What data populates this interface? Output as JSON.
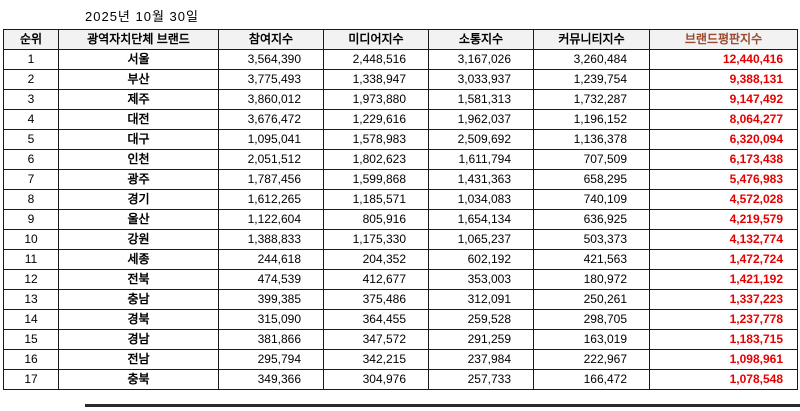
{
  "title": "2025년 10월 30일",
  "colors": {
    "reputation_value": "#e60000",
    "reputation_header": "#9a4a2e",
    "header_bg": "#f2f2f2",
    "border": "#1a1a1a"
  },
  "chart_data": {
    "type": "table",
    "title": "2025년 10월 30일",
    "columns": [
      "순위",
      "광역자치단체 브랜드",
      "참여지수",
      "미디어지수",
      "소통지수",
      "커뮤니티지수",
      "브랜드평판지수"
    ],
    "rows": [
      [
        "1",
        "서울",
        "3,564,390",
        "2,448,516",
        "3,167,026",
        "3,260,484",
        "12,440,416"
      ],
      [
        "2",
        "부산",
        "3,775,493",
        "1,338,947",
        "3,033,937",
        "1,239,754",
        "9,388,131"
      ],
      [
        "3",
        "제주",
        "3,860,012",
        "1,973,880",
        "1,581,313",
        "1,732,287",
        "9,147,492"
      ],
      [
        "4",
        "대전",
        "3,676,472",
        "1,229,616",
        "1,962,037",
        "1,196,152",
        "8,064,277"
      ],
      [
        "5",
        "대구",
        "1,095,041",
        "1,578,983",
        "2,509,692",
        "1,136,378",
        "6,320,094"
      ],
      [
        "6",
        "인천",
        "2,051,512",
        "1,802,623",
        "1,611,794",
        "707,509",
        "6,173,438"
      ],
      [
        "7",
        "광주",
        "1,787,456",
        "1,599,868",
        "1,431,363",
        "658,295",
        "5,476,983"
      ],
      [
        "8",
        "경기",
        "1,612,265",
        "1,185,571",
        "1,034,083",
        "740,109",
        "4,572,028"
      ],
      [
        "9",
        "울산",
        "1,122,604",
        "805,916",
        "1,654,134",
        "636,925",
        "4,219,579"
      ],
      [
        "10",
        "강원",
        "1,388,833",
        "1,175,330",
        "1,065,237",
        "503,373",
        "4,132,774"
      ],
      [
        "11",
        "세종",
        "244,618",
        "204,352",
        "602,192",
        "421,563",
        "1,472,724"
      ],
      [
        "12",
        "전북",
        "474,539",
        "412,677",
        "353,003",
        "180,972",
        "1,421,192"
      ],
      [
        "13",
        "충남",
        "399,385",
        "375,486",
        "312,091",
        "250,261",
        "1,337,223"
      ],
      [
        "14",
        "경북",
        "315,090",
        "364,455",
        "259,528",
        "298,705",
        "1,237,778"
      ],
      [
        "15",
        "경남",
        "381,866",
        "347,572",
        "291,259",
        "163,019",
        "1,183,715"
      ],
      [
        "16",
        "전남",
        "295,794",
        "342,215",
        "237,984",
        "222,967",
        "1,098,961"
      ],
      [
        "17",
        "충북",
        "349,366",
        "304,976",
        "257,733",
        "166,472",
        "1,078,548"
      ]
    ]
  }
}
